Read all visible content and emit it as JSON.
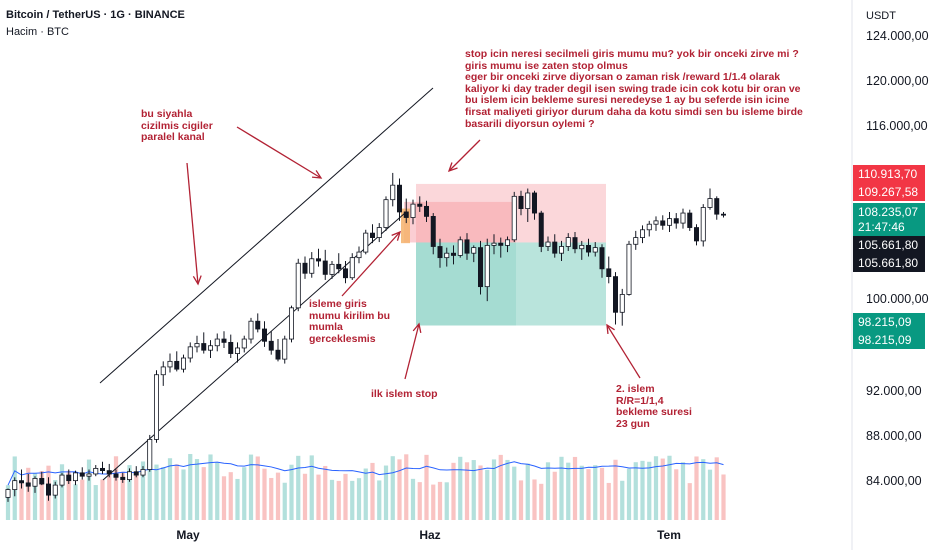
{
  "header": {
    "title": "Bitcoin / TetherUS · 1G · BINANCE",
    "volume_label": "Hacim · BTC"
  },
  "chart_data": {
    "type": "candlestick",
    "symbol": "Bitcoin / TetherUS",
    "timeframe": "1G",
    "exchange": "BINANCE",
    "y_unit": "USDT",
    "ylim": [
      80000,
      126500
    ],
    "y_ticks": [
      "124.000,00",
      "120.000,00",
      "116.000,00",
      "100.000,00",
      "92.000,00",
      "88.000,00",
      "84.000,00"
    ],
    "x_ticks": [
      "May",
      "Haz",
      "Tem"
    ],
    "candles": [
      [
        82800,
        83600,
        82400,
        83500
      ],
      [
        83500,
        84600,
        82900,
        84300
      ],
      [
        84300,
        85300,
        83600,
        84100
      ],
      [
        84100,
        84900,
        83300,
        83800
      ],
      [
        83800,
        84700,
        83200,
        84500
      ],
      [
        84500,
        85100,
        83900,
        84000
      ],
      [
        84000,
        84600,
        82500,
        83000
      ],
      [
        83000,
        84200,
        82700,
        83900
      ],
      [
        83900,
        85000,
        83700,
        84800
      ],
      [
        84800,
        85300,
        84000,
        84300
      ],
      [
        84300,
        85200,
        83900,
        85000
      ],
      [
        85000,
        85500,
        84400,
        84700
      ],
      [
        84700,
        85300,
        84300,
        84900
      ],
      [
        84900,
        85700,
        84700,
        85400
      ],
      [
        85400,
        86000,
        84900,
        85200
      ],
      [
        85200,
        85800,
        84600,
        84900
      ],
      [
        84900,
        85300,
        84300,
        84600
      ],
      [
        84600,
        85000,
        84100,
        84400
      ],
      [
        84400,
        85400,
        84200,
        85100
      ],
      [
        85100,
        85600,
        84600,
        84800
      ],
      [
        84800,
        85600,
        84600,
        85300
      ],
      [
        85300,
        88400,
        85100,
        88000
      ],
      [
        88000,
        94200,
        87700,
        93800
      ],
      [
        93800,
        95000,
        92800,
        94500
      ],
      [
        94500,
        95700,
        94000,
        95000
      ],
      [
        95000,
        95900,
        94100,
        94300
      ],
      [
        94300,
        95600,
        94000,
        95300
      ],
      [
        95300,
        96700,
        94900,
        96300
      ],
      [
        96300,
        97300,
        95800,
        96600
      ],
      [
        96600,
        97600,
        95700,
        96000
      ],
      [
        96000,
        96900,
        95300,
        96400
      ],
      [
        96400,
        97500,
        95900,
        97000
      ],
      [
        97000,
        97700,
        96200,
        96700
      ],
      [
        96700,
        97400,
        95300,
        95700
      ],
      [
        95700,
        96700,
        94900,
        96200
      ],
      [
        96200,
        97300,
        95800,
        97000
      ],
      [
        97000,
        98900,
        96600,
        98600
      ],
      [
        98600,
        99300,
        97600,
        97900
      ],
      [
        97900,
        98600,
        96300,
        96800
      ],
      [
        96800,
        97700,
        95600,
        96000
      ],
      [
        96000,
        97000,
        95000,
        95200
      ],
      [
        95200,
        97300,
        94800,
        97000
      ],
      [
        97000,
        100000,
        96700,
        99800
      ],
      [
        99800,
        104200,
        99500,
        103800
      ],
      [
        103800,
        104400,
        102400,
        102900
      ],
      [
        102900,
        104800,
        102500,
        104200
      ],
      [
        104200,
        105100,
        103500,
        104000
      ],
      [
        104000,
        105000,
        102300,
        102800
      ],
      [
        102800,
        104000,
        102400,
        103700
      ],
      [
        103700,
        104700,
        102900,
        103300
      ],
      [
        103300,
        104000,
        102000,
        102500
      ],
      [
        102500,
        104700,
        102300,
        104300
      ],
      [
        104300,
        105300,
        103800,
        104800
      ],
      [
        104800,
        106800,
        104600,
        106500
      ],
      [
        106500,
        107300,
        105600,
        106100
      ],
      [
        106100,
        107400,
        105700,
        107000
      ],
      [
        107000,
        109800,
        106700,
        109500
      ],
      [
        109500,
        111900,
        108900,
        110800
      ],
      [
        110800,
        111400,
        107600,
        108400
      ],
      [
        108400,
        109600,
        107400,
        107900
      ],
      [
        107900,
        109500,
        107300,
        109100
      ],
      [
        109100,
        109800,
        108400,
        108900
      ],
      [
        108900,
        109400,
        107500,
        108000
      ],
      [
        108000,
        108300,
        104600,
        105300
      ],
      [
        105300,
        106000,
        103400,
        104300
      ],
      [
        104300,
        105200,
        103500,
        104700
      ],
      [
        104700,
        105400,
        103700,
        104500
      ],
      [
        104500,
        106200,
        104300,
        105900
      ],
      [
        105900,
        106500,
        104100,
        104700
      ],
      [
        104700,
        105400,
        103900,
        105200
      ],
      [
        105200,
        105800,
        101000,
        101700
      ],
      [
        101700,
        106000,
        100400,
        105400
      ],
      [
        105400,
        106400,
        104600,
        105600
      ],
      [
        105600,
        106100,
        104300,
        105400
      ],
      [
        105400,
        106200,
        104800,
        105900
      ],
      [
        105900,
        110200,
        105700,
        109800
      ],
      [
        109800,
        110300,
        108100,
        108700
      ],
      [
        108700,
        110500,
        107500,
        110100
      ],
      [
        110100,
        110300,
        107700,
        108300
      ],
      [
        108300,
        108500,
        104800,
        105300
      ],
      [
        105300,
        106200,
        104900,
        105700
      ],
      [
        105700,
        106400,
        104300,
        104700
      ],
      [
        104700,
        105800,
        104000,
        105300
      ],
      [
        105300,
        106500,
        104900,
        106100
      ],
      [
        106100,
        106600,
        104700,
        105100
      ],
      [
        105100,
        105800,
        104100,
        105400
      ],
      [
        105400,
        106000,
        104400,
        104800
      ],
      [
        104800,
        105700,
        104400,
        105200
      ],
      [
        105200,
        105500,
        102500,
        103300
      ],
      [
        103300,
        104400,
        102000,
        102600
      ],
      [
        102600,
        103000,
        98300,
        99400
      ],
      [
        99400,
        101500,
        98200,
        101000
      ],
      [
        101000,
        105800,
        100900,
        105500
      ],
      [
        105500,
        106700,
        105000,
        106100
      ],
      [
        106100,
        107200,
        105600,
        106800
      ],
      [
        106800,
        107600,
        106200,
        107300
      ],
      [
        107300,
        108000,
        106700,
        107600
      ],
      [
        107600,
        108100,
        106800,
        107200
      ],
      [
        107200,
        108400,
        106600,
        107800
      ],
      [
        107800,
        108300,
        106900,
        107400
      ],
      [
        107400,
        108700,
        106900,
        108300
      ],
      [
        108300,
        108600,
        106700,
        107000
      ],
      [
        107000,
        107300,
        105400,
        105800
      ],
      [
        105800,
        109100,
        105300,
        108800
      ],
      [
        108800,
        110500,
        108600,
        109600
      ],
      [
        109600,
        109800,
        107700,
        108200
      ],
      [
        108200,
        108400,
        107900,
        108150
      ]
    ],
    "volume_ma_color": "#2962ff",
    "trade_box": {
      "entry": 105661.8,
      "stop": 110913.7,
      "target": 98215.09
    },
    "price_tags": [
      {
        "value": "110.913,70",
        "color": "#f23645"
      },
      {
        "value": "109.267,58",
        "color": "#f23645"
      },
      {
        "value": "108.235,07",
        "color": "#089981"
      },
      {
        "value": "21:47:46",
        "color": "#089981"
      },
      {
        "value": "105.661,80",
        "color": "#131722"
      },
      {
        "value": "105.661,80",
        "color": "#131722"
      },
      {
        "value": "98.215,09",
        "color": "#089981"
      },
      {
        "value": "98.215,09",
        "color": "#089981"
      }
    ],
    "colors": {
      "up": "#ffffff",
      "down": "#131722",
      "outline": "#131722",
      "stop_zone": "#f7a6ae",
      "target_zone": "#80cdbf",
      "annotation": "#b22234"
    }
  },
  "annotations": {
    "channel_note": "bu siyahla\ncizilmis cigiler\nparalel kanal",
    "question_note": "stop icin neresi secilmeli giris mumu mu? yok bir onceki zirve mi ?\ngiris mumu ise zaten stop olmus\neger bir onceki zirve diyorsan o zaman risk /reward 1/1.4 olarak\nkaliyor ki day trader degil isen swing trade icin cok kotu bir oran ve\nbu islem icin bekleme suresi neredeyse 1 ay bu seferde isin icine\nfirsat maliyeti giriyor durum daha da kotu simdi sen bu isleme birde\nbasarili diyorsun oylemi ?",
    "entry_note": "isleme giris\nmumu kirilim bu\nmumla\ngerceklesmis",
    "stop_note": "ilk islem stop",
    "second_note": "2. islem\nR/R=1/1,4\nbekleme suresi\n23 gun"
  }
}
